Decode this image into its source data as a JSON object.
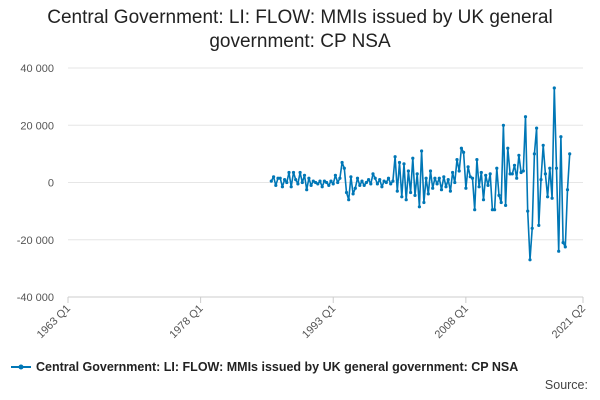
{
  "title_line1": "Central Government: LI: FLOW: MMIs issued by UK general",
  "title_line2": "government: CP NSA",
  "source_label": "Source:",
  "colors": {
    "series": "#0077b6",
    "grid": "#e6e6e6",
    "axis": "#cccccc"
  },
  "chart_data": {
    "type": "line",
    "title": "Central Government: LI: FLOW: MMIs issued by UK general government: CP NSA",
    "xlabel": "",
    "ylabel": "",
    "x_range": [
      "1963 Q1",
      "2021 Q2"
    ],
    "x_ticks": [
      "1963 Q1",
      "1978 Q1",
      "1993 Q1",
      "2008 Q1",
      "2021 Q2"
    ],
    "ylim": [
      -40000,
      40000
    ],
    "y_ticks": [
      {
        "value": 40000,
        "label": "40 000"
      },
      {
        "value": 20000,
        "label": "20 000"
      },
      {
        "value": 0,
        "label": "0"
      },
      {
        "value": -20000,
        "label": "-20 000"
      },
      {
        "value": -40000,
        "label": "-40 000"
      }
    ],
    "grid": true,
    "legend_position": "bottom",
    "series": [
      {
        "name": "Central Government: LI: FLOW: MMIs issued by UK general government: CP NSA",
        "points": [
          [
            "1986 Q1",
            500
          ],
          [
            "1986 Q2",
            2000
          ],
          [
            "1986 Q3",
            -1000
          ],
          [
            "1986 Q4",
            1500
          ],
          [
            "1987 Q1",
            1500
          ],
          [
            "1987 Q2",
            -1500
          ],
          [
            "1987 Q3",
            1000
          ],
          [
            "1987 Q4",
            0
          ],
          [
            "1988 Q1",
            3500
          ],
          [
            "1988 Q2",
            -1500
          ],
          [
            "1988 Q3",
            3500
          ],
          [
            "1988 Q4",
            1000
          ],
          [
            "1989 Q1",
            -500
          ],
          [
            "1989 Q2",
            3500
          ],
          [
            "1989 Q3",
            0
          ],
          [
            "1989 Q4",
            2500
          ],
          [
            "1990 Q1",
            -2500
          ],
          [
            "1990 Q2",
            1500
          ],
          [
            "1990 Q3",
            -1000
          ],
          [
            "1990 Q4",
            500
          ],
          [
            "1991 Q1",
            0
          ],
          [
            "1991 Q2",
            -500
          ],
          [
            "1991 Q3",
            500
          ],
          [
            "1991 Q4",
            -1500
          ],
          [
            "1992 Q1",
            500
          ],
          [
            "1992 Q2",
            0
          ],
          [
            "1992 Q3",
            -1000
          ],
          [
            "1992 Q4",
            500
          ],
          [
            "1993 Q1",
            -500
          ],
          [
            "1993 Q2",
            2500
          ],
          [
            "1993 Q3",
            0
          ],
          [
            "1993 Q4",
            1500
          ],
          [
            "1994 Q1",
            7000
          ],
          [
            "1994 Q2",
            5000
          ],
          [
            "1994 Q3",
            -3500
          ],
          [
            "1994 Q4",
            -6000
          ],
          [
            "1995 Q1",
            2000
          ],
          [
            "1995 Q2",
            -4000
          ],
          [
            "1995 Q3",
            -2000
          ],
          [
            "1995 Q4",
            1500
          ],
          [
            "1996 Q1",
            -1000
          ],
          [
            "1996 Q2",
            500
          ],
          [
            "1996 Q3",
            -1000
          ],
          [
            "1996 Q4",
            0
          ],
          [
            "1997 Q1",
            1000
          ],
          [
            "1997 Q2",
            -500
          ],
          [
            "1997 Q3",
            3000
          ],
          [
            "1997 Q4",
            1500
          ],
          [
            "1998 Q1",
            -500
          ],
          [
            "1998 Q2",
            1000
          ],
          [
            "1998 Q3",
            -1500
          ],
          [
            "1998 Q4",
            500
          ],
          [
            "1999 Q1",
            0
          ],
          [
            "1999 Q2",
            1500
          ],
          [
            "1999 Q3",
            -500
          ],
          [
            "1999 Q4",
            500
          ],
          [
            "2000 Q1",
            9000
          ],
          [
            "2000 Q2",
            -3000
          ],
          [
            "2000 Q3",
            7000
          ],
          [
            "2000 Q4",
            -5000
          ],
          [
            "2001 Q1",
            6500
          ],
          [
            "2001 Q2",
            -6000
          ],
          [
            "2001 Q3",
            4000
          ],
          [
            "2001 Q4",
            -3500
          ],
          [
            "2002 Q1",
            8500
          ],
          [
            "2002 Q2",
            -4500
          ],
          [
            "2002 Q3",
            3000
          ],
          [
            "2002 Q4",
            -8500
          ],
          [
            "2003 Q1",
            11000
          ],
          [
            "2003 Q2",
            -7000
          ],
          [
            "2003 Q3",
            1500
          ],
          [
            "2003 Q4",
            -4000
          ],
          [
            "2004 Q1",
            4000
          ],
          [
            "2004 Q2",
            -2000
          ],
          [
            "2004 Q3",
            1500
          ],
          [
            "2004 Q4",
            -500
          ],
          [
            "2005 Q1",
            1500
          ],
          [
            "2005 Q2",
            -2500
          ],
          [
            "2005 Q3",
            2000
          ],
          [
            "2005 Q4",
            -1500
          ],
          [
            "2006 Q1",
            1000
          ],
          [
            "2006 Q2",
            -3000
          ],
          [
            "2006 Q3",
            3500
          ],
          [
            "2006 Q4",
            0
          ],
          [
            "2007 Q1",
            8000
          ],
          [
            "2007 Q2",
            4000
          ],
          [
            "2007 Q3",
            12000
          ],
          [
            "2007 Q4",
            10500
          ],
          [
            "2008 Q1",
            -2000
          ],
          [
            "2008 Q2",
            5500
          ],
          [
            "2008 Q3",
            2000
          ],
          [
            "2008 Q4",
            1500
          ],
          [
            "2009 Q1",
            -9500
          ],
          [
            "2009 Q2",
            8000
          ],
          [
            "2009 Q3",
            -1500
          ],
          [
            "2009 Q4",
            3500
          ],
          [
            "2010 Q1",
            -6000
          ],
          [
            "2010 Q2",
            2500
          ],
          [
            "2010 Q3",
            -1000
          ],
          [
            "2010 Q4",
            3000
          ],
          [
            "2011 Q1",
            -9500
          ],
          [
            "2011 Q2",
            -9500
          ],
          [
            "2011 Q3",
            5000
          ],
          [
            "2011 Q4",
            -4500
          ],
          [
            "2012 Q1",
            -7000
          ],
          [
            "2012 Q2",
            20000
          ],
          [
            "2012 Q3",
            -8000
          ],
          [
            "2012 Q4",
            12000
          ],
          [
            "2013 Q1",
            3000
          ],
          [
            "2013 Q2",
            3000
          ],
          [
            "2013 Q3",
            6000
          ],
          [
            "2013 Q4",
            1500
          ],
          [
            "2014 Q1",
            9500
          ],
          [
            "2014 Q2",
            3500
          ],
          [
            "2014 Q3",
            4000
          ],
          [
            "2014 Q4",
            23000
          ],
          [
            "2015 Q1",
            -10000
          ],
          [
            "2015 Q2",
            -27000
          ],
          [
            "2015 Q3",
            -16000
          ],
          [
            "2015 Q4",
            10000
          ],
          [
            "2016 Q1",
            19000
          ],
          [
            "2016 Q2",
            -15000
          ],
          [
            "2016 Q3",
            1000
          ],
          [
            "2016 Q4",
            13000
          ],
          [
            "2017 Q1",
            3000
          ],
          [
            "2017 Q2",
            -5000
          ],
          [
            "2017 Q3",
            5000
          ],
          [
            "2017 Q4",
            -5500
          ],
          [
            "2018 Q1",
            33000
          ],
          [
            "2018 Q2",
            5000
          ],
          [
            "2018 Q3",
            -24000
          ],
          [
            "2018 Q4",
            16000
          ],
          [
            "2019 Q1",
            -21000
          ],
          [
            "2019 Q2",
            -22500
          ],
          [
            "2019 Q3",
            -2500
          ],
          [
            "2019 Q4",
            10000
          ]
        ]
      }
    ]
  }
}
